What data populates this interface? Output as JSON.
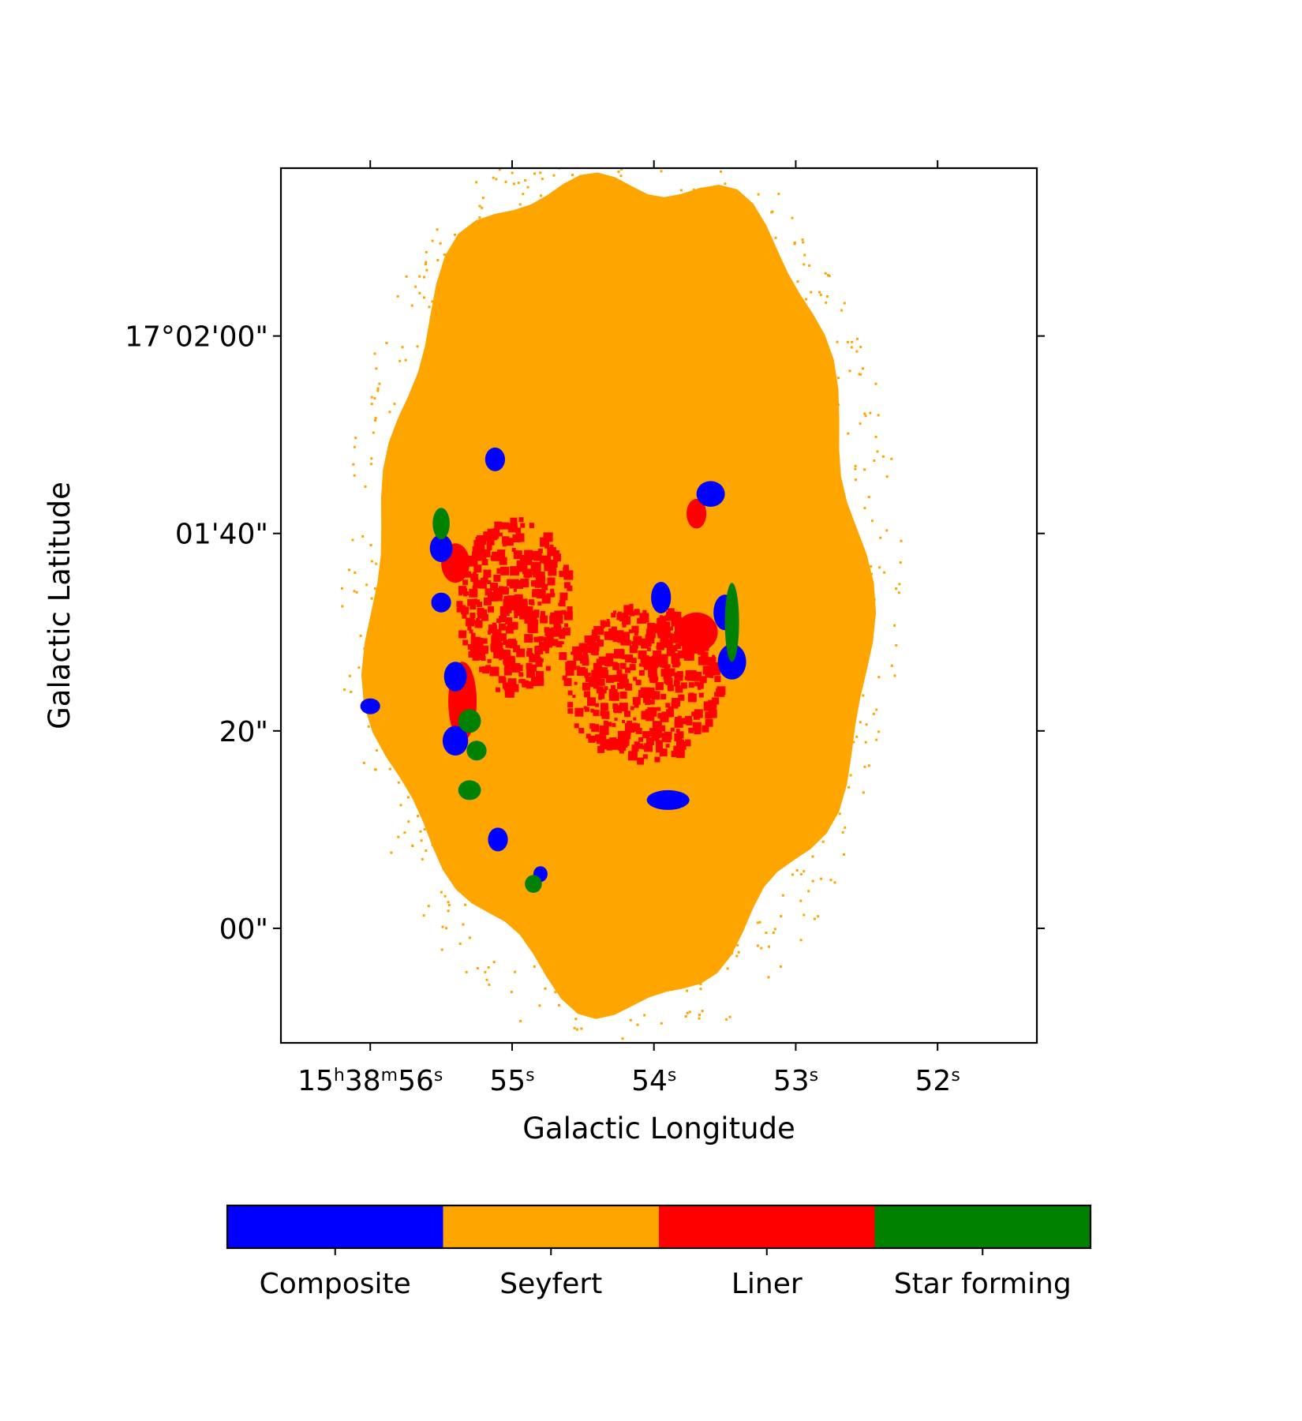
{
  "chart_data": {
    "type": "heatmap",
    "subtype": "classification map (BPT regions) in sky coordinates",
    "xlabel": "Galactic Longitude",
    "ylabel": "Galactic Latitude",
    "x_ticks": [
      {
        "value_s": 56,
        "label": "15h38m56s",
        "parts": [
          "15",
          "h",
          "38",
          "m",
          "56",
          "s"
        ]
      },
      {
        "value_s": 55,
        "label": "55s",
        "parts": [
          "55",
          "s"
        ]
      },
      {
        "value_s": 54,
        "label": "54s",
        "parts": [
          "54",
          "s"
        ]
      },
      {
        "value_s": 53,
        "label": "53s",
        "parts": [
          "53",
          "s"
        ]
      },
      {
        "value_s": 52,
        "label": "52s",
        "parts": [
          "52",
          "s"
        ]
      }
    ],
    "y_ticks": [
      {
        "value_arcsec": 120,
        "label": "17°02'00\""
      },
      {
        "value_arcsec": 100,
        "label": "01'40\""
      },
      {
        "value_arcsec": 80,
        "label": "20\""
      },
      {
        "value_arcsec": 60,
        "label": "00\""
      }
    ],
    "xlim_s": [
      56.63,
      51.3
    ],
    "ylim_arcsec": [
      48.4,
      137.0
    ],
    "grid": false,
    "legend_placement": "bottom (horizontal colorbar)",
    "categories": [
      "Composite",
      "Seyfert",
      "Liner",
      "Star forming"
    ],
    "category_colors": [
      "#0000ff",
      "#ffa500",
      "#ff0000",
      "#008000"
    ],
    "regions": [
      {
        "category": "Seyfert",
        "shape": "body",
        "center": [
          54.25,
          95
        ],
        "extent": [
          1.75,
          42
        ]
      },
      {
        "category": "Liner",
        "center": [
          54.1,
          85
        ],
        "extent": [
          0.55,
          8
        ]
      },
      {
        "category": "Liner",
        "center": [
          55.0,
          93
        ],
        "extent": [
          0.4,
          9
        ]
      },
      {
        "category": "Liner",
        "center": [
          55.35,
          83
        ],
        "extent": [
          0.1,
          4
        ]
      },
      {
        "category": "Liner",
        "center": [
          55.4,
          97
        ],
        "extent": [
          0.1,
          2
        ]
      },
      {
        "category": "Liner",
        "center": [
          53.7,
          102
        ],
        "extent": [
          0.07,
          1.5
        ]
      },
      {
        "category": "Liner",
        "center": [
          53.7,
          90
        ],
        "extent": [
          0.15,
          2
        ]
      },
      {
        "category": "Composite",
        "center": [
          55.5,
          98.5
        ],
        "extent": [
          0.08,
          1.4
        ]
      },
      {
        "category": "Composite",
        "center": [
          55.5,
          93
        ],
        "extent": [
          0.07,
          1
        ]
      },
      {
        "category": "Composite",
        "center": [
          55.4,
          85.5
        ],
        "extent": [
          0.08,
          1.5
        ]
      },
      {
        "category": "Composite",
        "center": [
          55.4,
          79
        ],
        "extent": [
          0.09,
          1.5
        ]
      },
      {
        "category": "Composite",
        "center": [
          55.12,
          107.5
        ],
        "extent": [
          0.07,
          1.2
        ]
      },
      {
        "category": "Composite",
        "center": [
          53.95,
          93.5
        ],
        "extent": [
          0.07,
          1.6
        ]
      },
      {
        "category": "Composite",
        "center": [
          53.45,
          87
        ],
        "extent": [
          0.1,
          1.8
        ]
      },
      {
        "category": "Composite",
        "center": [
          53.6,
          104
        ],
        "extent": [
          0.1,
          1.3
        ]
      },
      {
        "category": "Composite",
        "center": [
          53.5,
          92
        ],
        "extent": [
          0.08,
          1.8
        ]
      },
      {
        "category": "Composite",
        "center": [
          53.9,
          73
        ],
        "extent": [
          0.15,
          1.0
        ]
      },
      {
        "category": "Composite",
        "center": [
          55.1,
          69
        ],
        "extent": [
          0.07,
          1.2
        ]
      },
      {
        "category": "Composite",
        "center": [
          54.8,
          65.5
        ],
        "extent": [
          0.05,
          0.8
        ]
      },
      {
        "category": "Composite",
        "center": [
          56.0,
          82.5
        ],
        "extent": [
          0.07,
          0.8
        ]
      },
      {
        "category": "Star forming",
        "center": [
          55.5,
          101
        ],
        "extent": [
          0.06,
          1.6
        ]
      },
      {
        "category": "Star forming",
        "center": [
          55.3,
          81
        ],
        "extent": [
          0.08,
          1.2
        ]
      },
      {
        "category": "Star forming",
        "center": [
          55.25,
          78
        ],
        "extent": [
          0.07,
          1.0
        ]
      },
      {
        "category": "Star forming",
        "center": [
          55.3,
          74
        ],
        "extent": [
          0.08,
          1.0
        ]
      },
      {
        "category": "Star forming",
        "center": [
          54.85,
          64.5
        ],
        "extent": [
          0.06,
          0.9
        ]
      },
      {
        "category": "Star forming",
        "center": [
          53.45,
          91
        ],
        "extent": [
          0.05,
          4
        ]
      }
    ]
  }
}
